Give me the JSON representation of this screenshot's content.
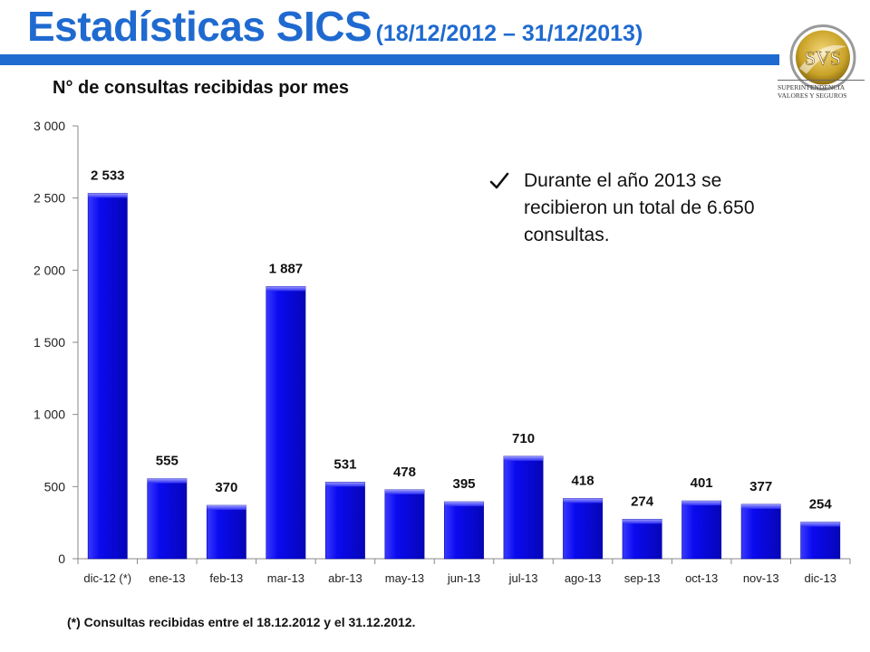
{
  "header": {
    "title": "Estadísticas SICS",
    "date_range": "(18/12/2012 – 31/12/2013)",
    "accent_color": "#1f6ad0"
  },
  "logo": {
    "monogram": "SVS",
    "line1": "SUPERINTENDENCIA",
    "line2": "VALORES Y SEGUROS",
    "ring_color": "#c9a227"
  },
  "subtitle": "N° de consultas recibidas por mes",
  "note": {
    "icon": "check-icon",
    "text": "Durante el año 2013 se recibieron un total de 6.650 consultas."
  },
  "footnote": "(*) Consultas recibidas entre el 18.12.2012 y el 31.12.2012.",
  "chart_data": {
    "type": "bar",
    "categories": [
      "dic-12 (*)",
      "ene-13",
      "feb-13",
      "mar-13",
      "abr-13",
      "may-13",
      "jun-13",
      "jul-13",
      "ago-13",
      "sep-13",
      "oct-13",
      "nov-13",
      "dic-13"
    ],
    "values": [
      2533,
      555,
      370,
      1887,
      531,
      478,
      395,
      710,
      418,
      274,
      401,
      377,
      254
    ],
    "data_labels": [
      "2 533",
      "555",
      "370",
      "1 887",
      "531",
      "478",
      "395",
      "710",
      "418",
      "274",
      "401",
      "377",
      "254"
    ],
    "y_ticks": [
      0,
      500,
      1000,
      1500,
      2000,
      2500,
      3000
    ],
    "y_tick_labels": [
      "0",
      "500",
      "1 000",
      "1 500",
      "2 000",
      "2 500",
      "3 000"
    ],
    "ylim": [
      0,
      3000
    ],
    "grid": false,
    "legend": "none",
    "bar_color": "#0a0af0"
  }
}
